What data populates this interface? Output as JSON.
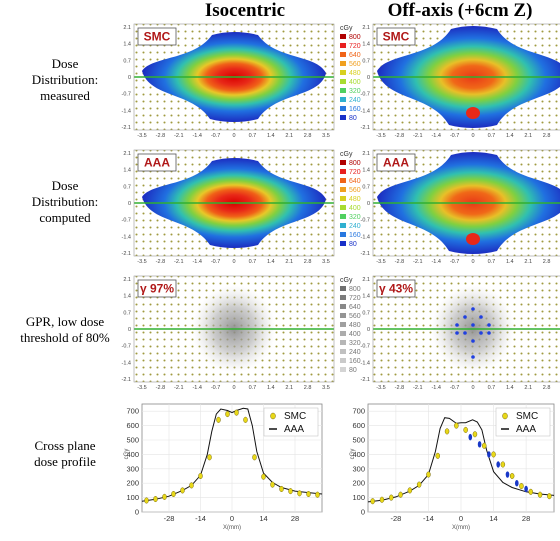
{
  "columns": [
    {
      "title": "Isocentric"
    },
    {
      "title": "Off-axis (+6cm Z)"
    }
  ],
  "rows": [
    {
      "label_lines": [
        "Dose",
        "Distribution:",
        "measured"
      ]
    },
    {
      "label_lines": [
        "Dose",
        "Distribution:",
        "computed"
      ]
    },
    {
      "label_lines": [
        "GPR, low dose",
        "threshold of 80%"
      ]
    },
    {
      "label_lines": [
        "Cross plane",
        "dose profile"
      ]
    }
  ],
  "panel_tags": [
    [
      "SMC",
      "SMC"
    ],
    [
      "AAA",
      "AAA"
    ],
    [
      "γ 97%",
      "γ 43%"
    ]
  ],
  "map_axes": {
    "y_ticks": [
      "2.1",
      "1.4",
      "0.7",
      "0",
      "-0.7",
      "-1.4",
      "-2.1"
    ],
    "x_ticks": [
      "-3.5",
      "-2.8",
      "-2.1",
      "-1.4",
      "-0.7",
      "0",
      "0.7",
      "1.4",
      "2.1",
      "2.8",
      "3.5"
    ]
  },
  "colorbar": {
    "unit": "cGy",
    "labels": [
      "800",
      "720",
      "640",
      "560",
      "480",
      "400",
      "320",
      "240",
      "160",
      "80"
    ],
    "colors": [
      "#b00000",
      "#e82020",
      "#f06418",
      "#f0a020",
      "#d8d020",
      "#a8dc30",
      "#50d060",
      "#30b0d0",
      "#2878e0",
      "#1830c8"
    ],
    "gray_colors": [
      "#707070",
      "#7c7c7c",
      "#888888",
      "#949494",
      "#a0a0a0",
      "#acacac",
      "#b6b6b6",
      "#c0c0c0",
      "#cacaca",
      "#d4d4d4"
    ]
  },
  "chart_data": [
    {
      "type": "line",
      "title": "",
      "xlabel": "X(mm)",
      "ylabel": "cGy",
      "xlim": [
        -40,
        40
      ],
      "ylim": [
        0,
        750
      ],
      "x_ticks": [
        -28,
        -14,
        0,
        14,
        28
      ],
      "y_ticks": [
        0,
        100,
        200,
        300,
        400,
        500,
        600,
        700
      ],
      "legend": "top-right",
      "series": [
        {
          "name": "SMC",
          "style": "marker-yellow",
          "x": [
            -38,
            -34,
            -30,
            -26,
            -22,
            -18,
            -14,
            -10,
            -6,
            -2,
            2,
            6,
            10,
            14,
            18,
            22,
            26,
            30,
            34,
            38
          ],
          "y": [
            80,
            90,
            105,
            125,
            150,
            185,
            250,
            380,
            640,
            680,
            690,
            640,
            380,
            245,
            190,
            160,
            145,
            130,
            125,
            120
          ]
        },
        {
          "name": "AAA",
          "style": "line-black",
          "x": [
            -40,
            -34,
            -28,
            -22,
            -18,
            -14,
            -11,
            -9,
            -7,
            -5,
            -2,
            0,
            2,
            5,
            7,
            9,
            11,
            14,
            18,
            22,
            28,
            34,
            40
          ],
          "y": [
            75,
            88,
            110,
            150,
            185,
            255,
            400,
            560,
            680,
            715,
            705,
            690,
            705,
            720,
            715,
            600,
            420,
            270,
            205,
            170,
            145,
            135,
            125
          ]
        }
      ]
    },
    {
      "type": "line",
      "title": "",
      "xlabel": "X(mm)",
      "ylabel": "cGy",
      "xlim": [
        -40,
        40
      ],
      "ylim": [
        0,
        750
      ],
      "x_ticks": [
        -28,
        -14,
        0,
        14,
        28
      ],
      "y_ticks": [
        0,
        100,
        200,
        300,
        400,
        500,
        600,
        700
      ],
      "legend": "top-right",
      "series": [
        {
          "name": "SMC",
          "style": "marker-yellow",
          "x": [
            -38,
            -34,
            -30,
            -26,
            -22,
            -18,
            -14,
            -10,
            -6,
            -2,
            2,
            6,
            10,
            14,
            18,
            22,
            26,
            30,
            34,
            38
          ],
          "y": [
            75,
            85,
            100,
            120,
            150,
            190,
            260,
            390,
            560,
            600,
            570,
            540,
            460,
            400,
            330,
            250,
            180,
            140,
            120,
            110
          ]
        },
        {
          "name": "AAA",
          "style": "line-black",
          "x": [
            -40,
            -34,
            -28,
            -22,
            -18,
            -14,
            -11,
            -9,
            -7,
            -5,
            -2,
            0,
            2,
            5,
            7,
            9,
            11,
            14,
            18,
            22,
            28,
            34,
            40
          ],
          "y": [
            70,
            82,
            105,
            145,
            185,
            260,
            420,
            580,
            655,
            650,
            615,
            620,
            620,
            640,
            625,
            570,
            430,
            280,
            205,
            170,
            140,
            125,
            115
          ]
        },
        {
          "name": "",
          "style": "marker-blue",
          "x": [
            4,
            8,
            12,
            16,
            20,
            24,
            28
          ],
          "y": [
            520,
            470,
            400,
            330,
            260,
            200,
            160
          ]
        }
      ]
    }
  ]
}
